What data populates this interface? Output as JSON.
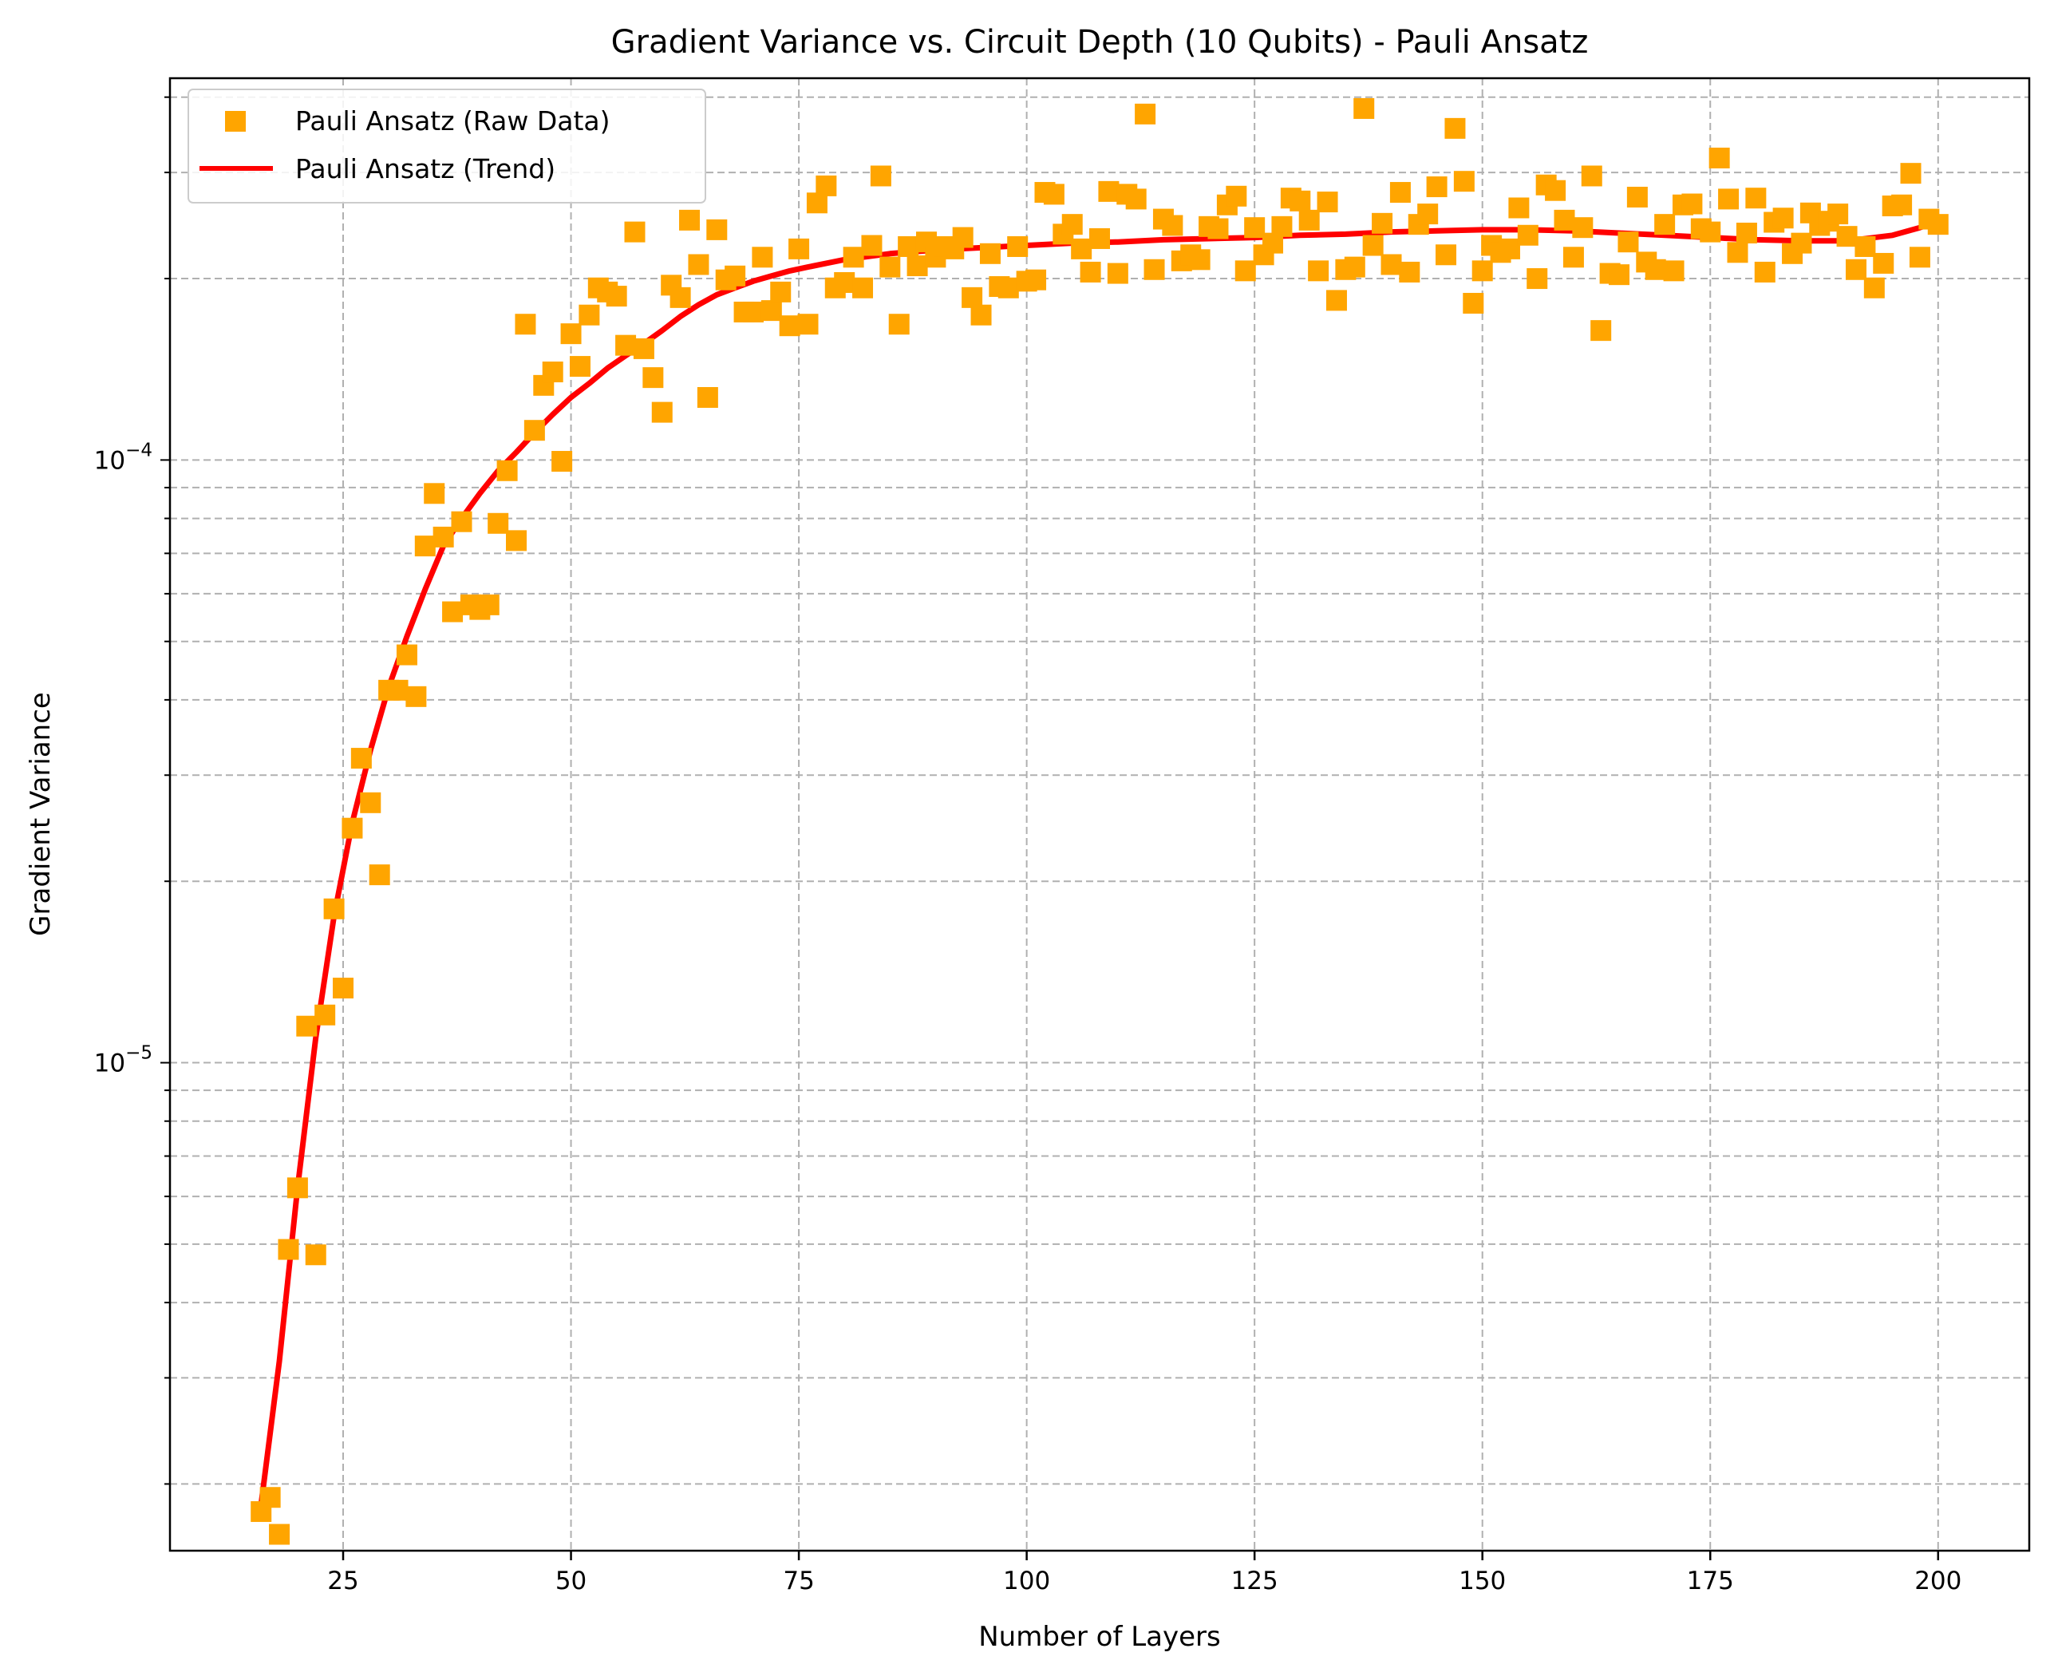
{
  "chart_data": {
    "type": "scatter",
    "title": "Gradient Variance vs. Circuit Depth (10 Qubits) - Pauli Ansatz",
    "xlabel": "Number of Layers",
    "ylabel": "Gradient Variance",
    "xscale": "linear",
    "yscale": "log",
    "xlim": [
      6,
      210
    ],
    "ylim": [
      1.55e-06,
      0.00043
    ],
    "xticks": [
      25,
      50,
      75,
      100,
      125,
      150,
      175,
      200
    ],
    "xtick_labels": [
      "25",
      "50",
      "75",
      "100",
      "125",
      "150",
      "175",
      "200"
    ],
    "ytick_major": [
      {
        "value": 1e-05,
        "base": "10",
        "exponent": "−5"
      },
      {
        "value": 0.0001,
        "base": "10",
        "exponent": "−4"
      }
    ],
    "grid": true,
    "legend_position": "upper-left",
    "colors": {
      "scatter": "#FFA500",
      "trend": "#FF0000"
    },
    "series": [
      {
        "name": "Pauli Ansatz (Raw Data)",
        "kind": "scatter",
        "marker": "square",
        "color": "#FFA500",
        "points": [
          [
            16,
            1.8e-06
          ],
          [
            17,
            1.9e-06
          ],
          [
            18,
            1.65e-06
          ],
          [
            19,
            4.9e-06
          ],
          [
            20,
            6.2e-06
          ],
          [
            21,
            1.15e-05
          ],
          [
            22,
            4.8e-06
          ],
          [
            23,
            1.2e-05
          ],
          [
            24,
            1.8e-05
          ],
          [
            25,
            1.33e-05
          ],
          [
            26,
            2.45e-05
          ],
          [
            27,
            3.2e-05
          ],
          [
            28,
            2.7e-05
          ],
          [
            29,
            2.05e-05
          ],
          [
            30,
            4.15e-05
          ],
          [
            31,
            4.15e-05
          ],
          [
            32,
            4.75e-05
          ],
          [
            33,
            4.05e-05
          ],
          [
            34,
            7.2e-05
          ],
          [
            35,
            8.8e-05
          ],
          [
            36,
            7.45e-05
          ],
          [
            37,
            5.6e-05
          ],
          [
            38,
            7.9e-05
          ],
          [
            39,
            5.75e-05
          ],
          [
            40,
            5.65e-05
          ],
          [
            41,
            5.75e-05
          ],
          [
            42,
            7.85e-05
          ],
          [
            43,
            9.6e-05
          ],
          [
            44,
            7.35e-05
          ],
          [
            45,
            0.000168
          ],
          [
            46,
            0.000112
          ],
          [
            47,
            0.000133
          ],
          [
            48,
            0.00014
          ],
          [
            49,
            9.95e-05
          ],
          [
            50,
            0.000162
          ],
          [
            51,
            0.000143
          ],
          [
            52,
            0.000174
          ],
          [
            53,
            0.000193
          ],
          [
            54,
            0.00019
          ],
          [
            55,
            0.000187
          ],
          [
            56,
            0.000155
          ],
          [
            57,
            0.000239
          ],
          [
            58,
            0.000153
          ],
          [
            59,
            0.000137
          ],
          [
            60,
            0.00012
          ],
          [
            61,
            0.000195
          ],
          [
            62,
            0.000186
          ],
          [
            63,
            0.00025
          ],
          [
            64,
            0.000211
          ],
          [
            65,
            0.000127
          ],
          [
            66,
            0.000241
          ],
          [
            67,
            0.000199
          ],
          [
            68,
            0.000202
          ],
          [
            69,
            0.000176
          ],
          [
            70,
            0.000176
          ],
          [
            71,
            0.000217
          ],
          [
            72,
            0.000177
          ],
          [
            73,
            0.00019
          ],
          [
            74,
            0.000167
          ],
          [
            75,
            0.000224
          ],
          [
            76,
            0.000168
          ],
          [
            77,
            0.000267
          ],
          [
            78,
            0.000285
          ],
          [
            79,
            0.000193
          ],
          [
            80,
            0.000197
          ],
          [
            81,
            0.000217
          ],
          [
            82,
            0.000193
          ],
          [
            83,
            0.000227
          ],
          [
            84,
            0.000296
          ],
          [
            85,
            0.000209
          ],
          [
            86,
            0.000168
          ],
          [
            87,
            0.000226
          ],
          [
            88,
            0.00021
          ],
          [
            89,
            0.00023
          ],
          [
            90,
            0.000217
          ],
          [
            91,
            0.000226
          ],
          [
            92,
            0.000224
          ],
          [
            93,
            0.000234
          ],
          [
            94,
            0.000186
          ],
          [
            95,
            0.000174
          ],
          [
            96,
            0.00022
          ],
          [
            97,
            0.000194
          ],
          [
            98,
            0.000193
          ],
          [
            99,
            0.000226
          ],
          [
            100,
            0.000198
          ],
          [
            101,
            0.000199
          ],
          [
            102,
            0.000278
          ],
          [
            103,
            0.000276
          ],
          [
            104,
            0.000237
          ],
          [
            105,
            0.000246
          ],
          [
            106,
            0.000224
          ],
          [
            107,
            0.000205
          ],
          [
            108,
            0.000233
          ],
          [
            109,
            0.000279
          ],
          [
            110,
            0.000204
          ],
          [
            111,
            0.000276
          ],
          [
            112,
            0.000271
          ],
          [
            113,
            0.000375
          ],
          [
            114,
            0.000207
          ],
          [
            115,
            0.000251
          ],
          [
            116,
            0.000245
          ],
          [
            117,
            0.000214
          ],
          [
            118,
            0.000219
          ],
          [
            119,
            0.000215
          ],
          [
            120,
            0.000244
          ],
          [
            121,
            0.000242
          ],
          [
            122,
            0.000265
          ],
          [
            123,
            0.000274
          ],
          [
            124,
            0.000206
          ],
          [
            125,
            0.000243
          ],
          [
            126,
            0.000219
          ],
          [
            127,
            0.000229
          ],
          [
            128,
            0.000244
          ],
          [
            129,
            0.000272
          ],
          [
            130,
            0.000269
          ],
          [
            131,
            0.00025
          ],
          [
            132,
            0.000206
          ],
          [
            133,
            0.000268
          ],
          [
            134,
            0.000184
          ],
          [
            135,
            0.000207
          ],
          [
            136,
            0.000209
          ],
          [
            137,
            0.000383
          ],
          [
            138,
            0.000227
          ],
          [
            139,
            0.000247
          ],
          [
            140,
            0.000211
          ],
          [
            141,
            0.000278
          ],
          [
            142,
            0.000205
          ],
          [
            143,
            0.000246
          ],
          [
            144,
            0.000256
          ],
          [
            145,
            0.000284
          ],
          [
            146,
            0.000219
          ],
          [
            147,
            0.000355
          ],
          [
            148,
            0.00029
          ],
          [
            149,
            0.000182
          ],
          [
            150,
            0.000206
          ],
          [
            151,
            0.000227
          ],
          [
            152,
            0.000221
          ],
          [
            153,
            0.000224
          ],
          [
            154,
            0.000262
          ],
          [
            155,
            0.000236
          ],
          [
            156,
            0.0002
          ],
          [
            157,
            0.000286
          ],
          [
            158,
            0.00028
          ],
          [
            159,
            0.00025
          ],
          [
            160,
            0.000217
          ],
          [
            161,
            0.000243
          ],
          [
            162,
            0.000296
          ],
          [
            163,
            0.000164
          ],
          [
            164,
            0.000204
          ],
          [
            165,
            0.000203
          ],
          [
            166,
            0.00023
          ],
          [
            167,
            0.000273
          ],
          [
            168,
            0.000213
          ],
          [
            169,
            0.000207
          ],
          [
            170,
            0.000246
          ],
          [
            171,
            0.000206
          ],
          [
            172,
            0.000265
          ],
          [
            173,
            0.000266
          ],
          [
            174,
            0.000242
          ],
          [
            175,
            0.000239
          ],
          [
            176,
            0.000317
          ],
          [
            177,
            0.000271
          ],
          [
            178,
            0.000221
          ],
          [
            179,
            0.000238
          ],
          [
            180,
            0.000272
          ],
          [
            181,
            0.000205
          ],
          [
            182,
            0.000248
          ],
          [
            183,
            0.000252
          ],
          [
            184,
            0.00022
          ],
          [
            185,
            0.000229
          ],
          [
            186,
            0.000257
          ],
          [
            187,
            0.000245
          ],
          [
            188,
            0.000249
          ],
          [
            189,
            0.000256
          ],
          [
            190,
            0.000235
          ],
          [
            191,
            0.000207
          ],
          [
            192,
            0.000226
          ],
          [
            193,
            0.000193
          ],
          [
            194,
            0.000212
          ],
          [
            195,
            0.000264
          ],
          [
            196,
            0.000265
          ],
          [
            197,
            0.000299
          ],
          [
            198,
            0.000217
          ],
          [
            199,
            0.000251
          ],
          [
            200,
            0.000246
          ]
        ]
      },
      {
        "name": "Pauli Ansatz (Trend)",
        "kind": "line",
        "color": "#FF0000",
        "points": [
          [
            16,
            1.85e-06
          ],
          [
            18,
            3.2e-06
          ],
          [
            20,
            6.2e-06
          ],
          [
            22,
            1.1e-05
          ],
          [
            24,
            1.75e-05
          ],
          [
            26,
            2.5e-05
          ],
          [
            28,
            3.3e-05
          ],
          [
            30,
            4.2e-05
          ],
          [
            32,
            5.1e-05
          ],
          [
            34,
            6.1e-05
          ],
          [
            36,
            7.2e-05
          ],
          [
            38,
            8e-05
          ],
          [
            40,
            8.8e-05
          ],
          [
            42,
            9.6e-05
          ],
          [
            44,
            0.000103
          ],
          [
            46,
            0.000111
          ],
          [
            48,
            0.000119
          ],
          [
            50,
            0.000127
          ],
          [
            52,
            0.000134
          ],
          [
            54,
            0.000142
          ],
          [
            56,
            0.000149
          ],
          [
            58,
            0.000156
          ],
          [
            60,
            0.000164
          ],
          [
            62,
            0.000173
          ],
          [
            64,
            0.000181
          ],
          [
            66,
            0.000188
          ],
          [
            68,
            0.000193
          ],
          [
            70,
            0.000198
          ],
          [
            72,
            0.000202
          ],
          [
            74,
            0.000206
          ],
          [
            76,
            0.000209
          ],
          [
            78,
            0.000212
          ],
          [
            80,
            0.000215
          ],
          [
            85,
            0.00022
          ],
          [
            90,
            0.000223
          ],
          [
            95,
            0.000225
          ],
          [
            100,
            0.000227
          ],
          [
            105,
            0.000229
          ],
          [
            110,
            0.00023
          ],
          [
            115,
            0.000232
          ],
          [
            120,
            0.000233
          ],
          [
            125,
            0.000234
          ],
          [
            130,
            0.000236
          ],
          [
            135,
            0.000237
          ],
          [
            140,
            0.000239
          ],
          [
            145,
            0.00024
          ],
          [
            150,
            0.000241
          ],
          [
            155,
            0.000241
          ],
          [
            160,
            0.00024
          ],
          [
            165,
            0.000238
          ],
          [
            170,
            0.000236
          ],
          [
            175,
            0.000234
          ],
          [
            180,
            0.000232
          ],
          [
            185,
            0.000231
          ],
          [
            190,
            0.000231
          ],
          [
            195,
            0.000236
          ],
          [
            198,
            0.000243
          ],
          [
            200,
            0.000249
          ]
        ]
      }
    ]
  }
}
